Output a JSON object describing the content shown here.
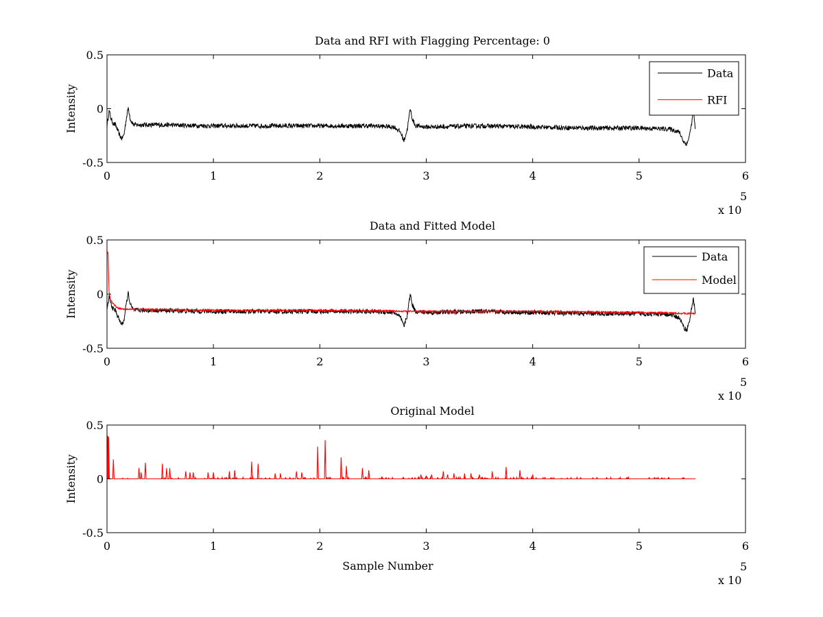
{
  "chart_data": [
    {
      "type": "line",
      "title": "Data and RFI with Flagging Percentage: 0",
      "xlabel": "",
      "ylabel": "Intensity",
      "xlim": [
        0,
        600000
      ],
      "ylim": [
        -0.5,
        0.5
      ],
      "x_ticks": [
        "0",
        "1",
        "2",
        "3",
        "4",
        "5",
        "6"
      ],
      "y_ticks": [
        "0.5",
        "0",
        "-0.5"
      ],
      "x_exponent_label": "x 10",
      "x_exponent_power": "5",
      "legend": {
        "location": "top-right",
        "entries": [
          {
            "label": "Data",
            "color": "#000000"
          },
          {
            "label": "RFI",
            "color": "#ff0000"
          }
        ]
      },
      "series": [
        {
          "name": "Data",
          "color": "#000000",
          "noise": 0.012,
          "x": [
            0,
            2000,
            4000,
            6000,
            8000,
            10000,
            12000,
            14000,
            16000,
            18000,
            20000,
            22000,
            25000,
            50000,
            100000,
            150000,
            200000,
            250000,
            270000,
            276000,
            279000,
            282000,
            285000,
            287000,
            290000,
            300000,
            350000,
            400000,
            450000,
            500000,
            530000,
            538000,
            542000,
            545000,
            548000,
            551000,
            553000
          ],
          "y": [
            -0.16,
            -0.02,
            -0.1,
            -0.14,
            -0.15,
            -0.2,
            -0.25,
            -0.28,
            -0.24,
            -0.1,
            0.01,
            -0.1,
            -0.15,
            -0.15,
            -0.16,
            -0.16,
            -0.16,
            -0.16,
            -0.17,
            -0.22,
            -0.3,
            -0.2,
            0.0,
            -0.1,
            -0.16,
            -0.17,
            -0.16,
            -0.17,
            -0.18,
            -0.18,
            -0.19,
            -0.22,
            -0.31,
            -0.33,
            -0.22,
            -0.03,
            -0.2
          ]
        },
        {
          "name": "RFI",
          "color": "#ff0000",
          "noise": 0,
          "x": [],
          "y": []
        }
      ]
    },
    {
      "type": "line",
      "title": "Data and Fitted Model",
      "xlabel": "",
      "ylabel": "Intensity",
      "xlim": [
        0,
        600000
      ],
      "ylim": [
        -0.5,
        0.5
      ],
      "x_ticks": [
        "0",
        "1",
        "2",
        "3",
        "4",
        "5",
        "6"
      ],
      "y_ticks": [
        "0.5",
        "0",
        "-0.5"
      ],
      "x_exponent_label": "x 10",
      "x_exponent_power": "5",
      "legend": {
        "location": "top-right",
        "entries": [
          {
            "label": "Data",
            "color": "#000000"
          },
          {
            "label": "Model",
            "color": "#ff0000"
          }
        ]
      },
      "series": [
        {
          "name": "Data",
          "color": "#000000",
          "noise": 0.012,
          "x": [
            0,
            2000,
            4000,
            6000,
            8000,
            10000,
            12000,
            14000,
            16000,
            18000,
            20000,
            22000,
            25000,
            50000,
            100000,
            150000,
            200000,
            250000,
            270000,
            276000,
            279000,
            282000,
            285000,
            287000,
            290000,
            300000,
            350000,
            400000,
            450000,
            500000,
            530000,
            538000,
            542000,
            545000,
            548000,
            551000,
            553000
          ],
          "y": [
            -0.16,
            -0.02,
            -0.1,
            -0.14,
            -0.15,
            -0.2,
            -0.25,
            -0.28,
            -0.24,
            -0.1,
            0.01,
            -0.1,
            -0.15,
            -0.15,
            -0.16,
            -0.16,
            -0.16,
            -0.16,
            -0.17,
            -0.22,
            -0.3,
            -0.2,
            0.0,
            -0.1,
            -0.16,
            -0.17,
            -0.16,
            -0.17,
            -0.18,
            -0.18,
            -0.19,
            -0.22,
            -0.31,
            -0.33,
            -0.22,
            -0.03,
            -0.2
          ]
        },
        {
          "name": "Model",
          "color": "#ff0000",
          "noise": 0.004,
          "x": [
            0,
            1000,
            2000,
            2500,
            3000,
            5000,
            7000,
            9000,
            11000,
            15000,
            20000,
            100000,
            200000,
            300000,
            400000,
            500000,
            553000
          ],
          "y": [
            0.4,
            0.38,
            0.0,
            0.0,
            -0.05,
            -0.08,
            -0.1,
            -0.12,
            -0.13,
            -0.14,
            -0.14,
            -0.15,
            -0.15,
            -0.16,
            -0.16,
            -0.17,
            -0.18
          ]
        }
      ]
    },
    {
      "type": "line",
      "title": "Original Model",
      "xlabel": "Sample Number",
      "ylabel": "Intensity",
      "xlim": [
        0,
        600000
      ],
      "ylim": [
        -0.5,
        0.5
      ],
      "x_ticks": [
        "0",
        "1",
        "2",
        "3",
        "4",
        "5",
        "6"
      ],
      "y_ticks": [
        "0.5",
        "0",
        "-0.5"
      ],
      "x_exponent_label": "x 10",
      "x_exponent_power": "5",
      "series": [
        {
          "name": "",
          "color": "#ff0000",
          "noise": 0,
          "baseline": 0.0,
          "end": 553000,
          "spikes_x": [
            800,
            1500,
            6000,
            30000,
            32000,
            36000,
            52000,
            56000,
            59000,
            74000,
            78000,
            81000,
            95000,
            100000,
            115000,
            120000,
            136000,
            142000,
            158000,
            163000,
            178000,
            183000,
            198000,
            205000,
            220000,
            225000,
            240000,
            246000,
            295000,
            300000,
            305000,
            316000,
            320000,
            326000,
            336000,
            342000,
            350000,
            362000,
            375000,
            388000,
            400000
          ],
          "spikes_y": [
            0.4,
            0.39,
            0.18,
            0.1,
            0.06,
            0.15,
            0.14,
            0.1,
            0.1,
            0.07,
            0.06,
            0.06,
            0.06,
            0.06,
            0.07,
            0.08,
            0.16,
            0.14,
            0.05,
            0.05,
            0.07,
            0.06,
            0.3,
            0.36,
            0.2,
            0.12,
            0.1,
            0.08,
            0.04,
            0.03,
            0.04,
            0.07,
            0.04,
            0.05,
            0.05,
            0.05,
            0.04,
            0.07,
            0.11,
            0.08,
            0.04
          ]
        }
      ]
    }
  ]
}
